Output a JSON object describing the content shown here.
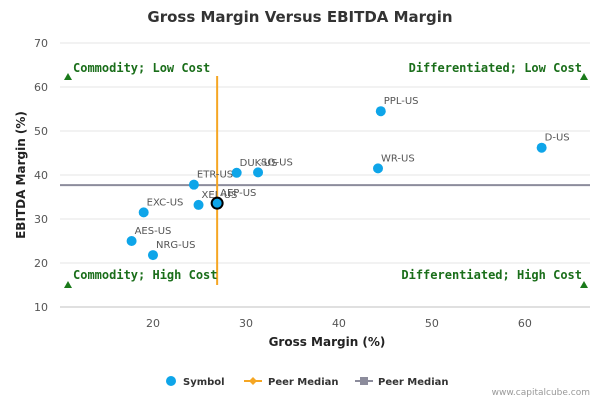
{
  "chart_data": {
    "type": "scatter",
    "title": "Gross Margin Versus EBITDA Margin",
    "xlabel": "Gross Margin (%)",
    "ylabel": "EBITDA Margin (%)",
    "xlim": [
      10,
      67
    ],
    "ylim": [
      10,
      70
    ],
    "xticks": [
      20,
      30,
      40,
      50,
      60
    ],
    "yticks": [
      10,
      20,
      30,
      40,
      50,
      60,
      70
    ],
    "series": [
      {
        "name": "Symbol",
        "color": "#0ea5e9",
        "points": [
          {
            "label": "PPL-US",
            "x": 44.5,
            "y": 54.5
          },
          {
            "label": "D-US",
            "x": 61.8,
            "y": 46.2
          },
          {
            "label": "WR-US",
            "x": 44.2,
            "y": 41.5
          },
          {
            "label": "DUK-US",
            "x": 29.0,
            "y": 40.5
          },
          {
            "label": "SO-US",
            "x": 31.3,
            "y": 40.6
          },
          {
            "label": "ETR-US",
            "x": 24.4,
            "y": 37.8
          },
          {
            "label": "XEL-US",
            "x": 24.9,
            "y": 33.2
          },
          {
            "label": "AEP-US",
            "x": 26.9,
            "y": 33.6
          },
          {
            "label": "EXC-US",
            "x": 19.0,
            "y": 31.5
          },
          {
            "label": "AES-US",
            "x": 17.7,
            "y": 25.0
          },
          {
            "label": "NRG-US",
            "x": 20.0,
            "y": 21.8
          }
        ]
      }
    ],
    "highlight_point": {
      "x": 26.9,
      "y": 33.6
    },
    "peer_median_x": {
      "name": "Peer Median",
      "value": 26.9,
      "color": "#f5a623"
    },
    "peer_median_y": {
      "name": "Peer Median",
      "value": 37.7,
      "color": "#8c8c9c"
    },
    "quadrants": {
      "top_left": "Commodity; Low Cost",
      "top_right": "Differentiated; Low Cost",
      "bottom_left": "Commodity; High Cost",
      "bottom_right": "Differentiated; High Cost"
    },
    "legend": [
      "Symbol",
      "Peer Median",
      "Peer Median"
    ],
    "credit": "www.capitalcube.com"
  }
}
